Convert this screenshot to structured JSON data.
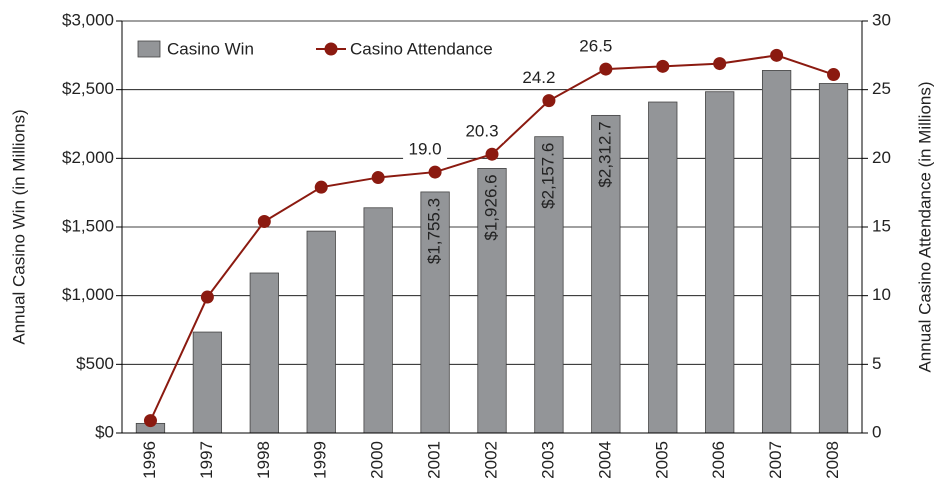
{
  "chart_data": {
    "type": "bar+line",
    "y_label": "Annual Casino Win (in Millions)",
    "y2_label": "Annual Casino Attendance (in Millions)",
    "categories": [
      "1996",
      "1997",
      "1998",
      "1999",
      "2000",
      "2001",
      "2002",
      "2003",
      "2004",
      "2005",
      "2006",
      "2007",
      "2008"
    ],
    "series": [
      {
        "name": "Casino Win",
        "type": "bar",
        "color": "#939598",
        "values": [
          70,
          735,
          1165,
          1470,
          1640,
          1755.3,
          1926.6,
          2157.6,
          2312.7,
          2410,
          2485,
          2640,
          2545
        ],
        "value_labels": [
          null,
          null,
          null,
          null,
          null,
          "$1,755.3",
          "$1,926.6",
          "$2,157.6",
          "$2,312.7",
          null,
          null,
          null,
          null
        ]
      },
      {
        "name": "Casino Attendance",
        "type": "line",
        "axis": "y2",
        "color": "#8b1a10",
        "values": [
          0.9,
          9.9,
          15.4,
          17.9,
          18.6,
          19.0,
          20.3,
          24.2,
          26.5,
          26.7,
          26.9,
          27.5,
          26.1
        ],
        "value_labels": [
          null,
          null,
          null,
          null,
          null,
          "19.0",
          "20.3",
          "24.2",
          "26.5",
          null,
          null,
          null,
          null
        ]
      }
    ],
    "ylim": [
      0,
      3000
    ],
    "yticks": [
      {
        "value": 0,
        "label": "$0"
      },
      {
        "value": 500,
        "label": "$500"
      },
      {
        "value": 1000,
        "label": "$1,000"
      },
      {
        "value": 1500,
        "label": "$1,500"
      },
      {
        "value": 2000,
        "label": "$2,000"
      },
      {
        "value": 2500,
        "label": "$2,500"
      },
      {
        "value": 3000,
        "label": "$3,000"
      }
    ],
    "y2lim": [
      0,
      30
    ],
    "y2ticks": [
      0,
      5,
      10,
      15,
      20,
      25,
      30
    ],
    "grid": true,
    "legend": "top-left"
  }
}
